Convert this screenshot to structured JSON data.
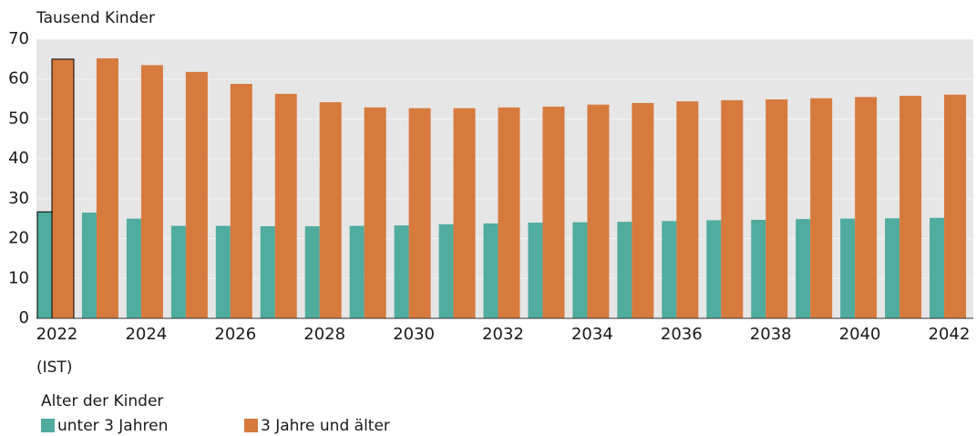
{
  "chart_data": {
    "type": "bar",
    "title": "Tausend Kinder",
    "annotation": "(IST)",
    "categories": [
      "2022",
      null,
      "2024",
      null,
      "2026",
      null,
      "2028",
      null,
      "2030",
      null,
      "2032",
      null,
      "2034",
      null,
      "2036",
      null,
      "2038",
      null,
      "2040",
      null,
      "2042"
    ],
    "legend_title": "Alter der Kinder",
    "series": [
      {
        "name": "unter 3 Jahren",
        "color": "#4fac9e",
        "values": [
          26.7,
          26.5,
          25.0,
          23.2,
          23.2,
          23.1,
          23.1,
          23.2,
          23.3,
          23.6,
          23.8,
          24.0,
          24.1,
          24.2,
          24.4,
          24.6,
          24.7,
          24.9,
          25.0,
          25.1,
          25.2
        ]
      },
      {
        "name": "3 Jahre und älter",
        "color": "#d77a3e",
        "values": [
          65.0,
          65.2,
          63.5,
          61.8,
          58.8,
          56.3,
          54.2,
          52.9,
          52.7,
          52.7,
          52.9,
          53.1,
          53.6,
          54.0,
          54.4,
          54.7,
          54.9,
          55.2,
          55.5,
          55.8,
          56.1
        ]
      }
    ],
    "ylim": [
      0,
      70
    ],
    "yticks": [
      0,
      10,
      20,
      30,
      40,
      50,
      60,
      70
    ],
    "grid": true
  }
}
